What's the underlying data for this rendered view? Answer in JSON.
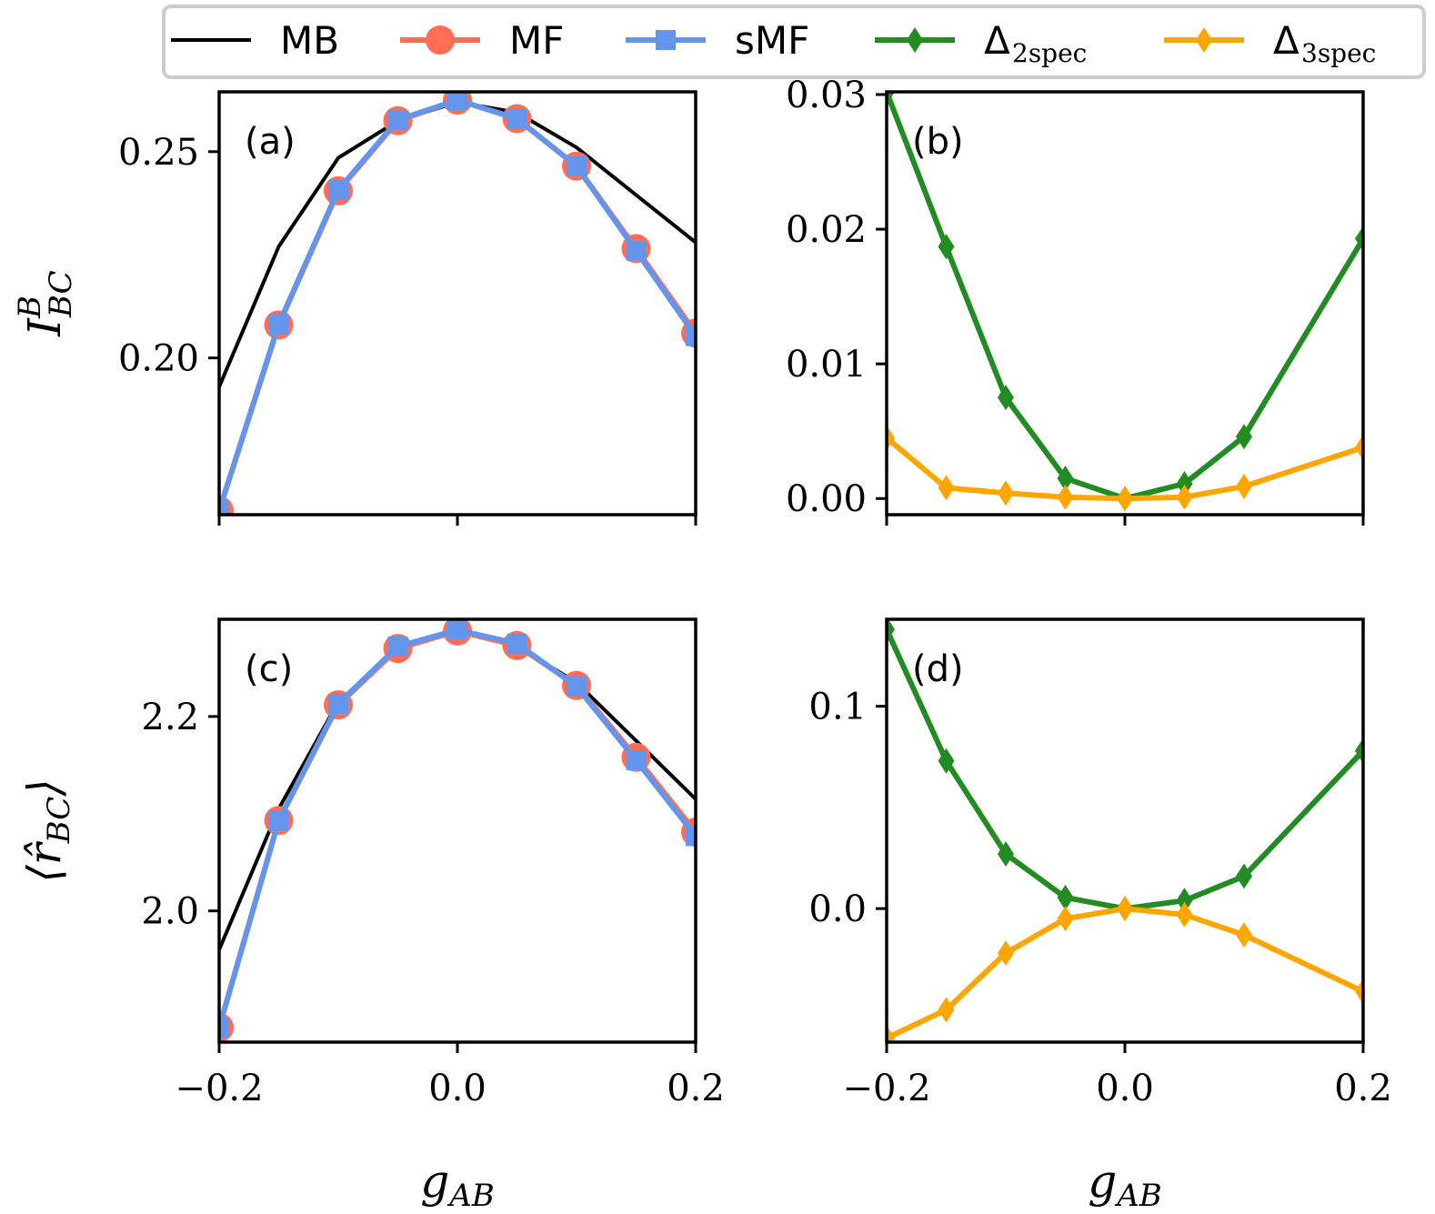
{
  "chart_data": {
    "type": "line",
    "legend": {
      "placement": "top",
      "entries": [
        {
          "label": "MB",
          "sub": "",
          "color": "#000000",
          "marker": "none"
        },
        {
          "label": "MF",
          "sub": "",
          "color": "#ff6e54",
          "marker": "circle"
        },
        {
          "label": "sMF",
          "sub": "",
          "color": "#6495ed",
          "marker": "square"
        },
        {
          "label": "Δ",
          "sub": "2spec",
          "color": "#228b22",
          "marker": "diamond"
        },
        {
          "label": "Δ",
          "sub": "3spec",
          "color": "#ffa500",
          "marker": "diamond"
        }
      ]
    },
    "panels": [
      {
        "id": "a",
        "label": "(a)",
        "ylabel": "I",
        "ylabel_sup": "B",
        "ylabel_sub": "BC",
        "xlabel": "",
        "xlim": [
          -0.2,
          0.2
        ],
        "ylim": [
          0.162,
          0.2645
        ],
        "yticks": [
          0.2,
          0.25
        ],
        "yticklabels": [
          "0.20",
          "0.25"
        ],
        "xticks": [
          -0.2,
          0.0,
          0.2
        ],
        "xticklabels": [],
        "series": [
          {
            "name": "MB",
            "x": [
              -0.2,
              -0.15,
              -0.1,
              -0.05,
              0.0,
              0.05,
              0.1,
              0.15,
              0.2
            ],
            "y": [
              0.193,
              0.227,
              0.2485,
              0.2575,
              0.262,
              0.2595,
              0.251,
              0.2395,
              0.228
            ]
          },
          {
            "name": "MF",
            "x": [
              -0.2,
              -0.15,
              -0.1,
              -0.05,
              0.0,
              0.05,
              0.1,
              0.15,
              0.2
            ],
            "y": [
              0.163,
              0.208,
              0.2405,
              0.2575,
              0.2625,
              0.258,
              0.2465,
              0.2265,
              0.206
            ]
          },
          {
            "name": "sMF",
            "x": [
              -0.2,
              -0.15,
              -0.1,
              -0.05,
              0.0,
              0.05,
              0.1,
              0.15,
              0.2
            ],
            "y": [
              0.163,
              0.2082,
              0.2407,
              0.2577,
              0.2625,
              0.258,
              0.2465,
              0.226,
              0.2053
            ]
          }
        ]
      },
      {
        "id": "b",
        "label": "(b)",
        "ylabel": "",
        "xlabel": "",
        "xlim": [
          -0.2,
          0.2
        ],
        "ylim": [
          -0.0012,
          0.0302
        ],
        "yticks": [
          0.0,
          0.01,
          0.02,
          0.03
        ],
        "yticklabels": [
          "0.00",
          "0.01",
          "0.02",
          "0.03"
        ],
        "xticks": [
          -0.2,
          0.0,
          0.2
        ],
        "xticklabels": [],
        "series": [
          {
            "name": "Δ2spec",
            "x": [
              -0.2,
              -0.15,
              -0.1,
              -0.05,
              0.0,
              0.05,
              0.1,
              0.2
            ],
            "y": [
              0.0302,
              0.0187,
              0.0075,
              0.0015,
              0.0,
              0.0011,
              0.0046,
              0.0193
            ]
          },
          {
            "name": "Δ3spec",
            "x": [
              -0.2,
              -0.15,
              -0.1,
              -0.05,
              0.0,
              0.05,
              0.1,
              0.2
            ],
            "y": [
              0.0045,
              0.0008,
              0.0004,
              0.0001,
              0.0,
              0.0001,
              0.0009,
              0.0038
            ]
          }
        ]
      },
      {
        "id": "c",
        "label": "(c)",
        "ylabel": "⟨r̂",
        "ylabel_sub": "BC",
        "ylabel_end": "⟩",
        "xlabel": "g",
        "xlabel_sub": "AB",
        "xlim": [
          -0.2,
          0.2
        ],
        "ylim": [
          1.865,
          2.3
        ],
        "yticks": [
          2.0,
          2.2
        ],
        "yticklabels": [
          "2.0",
          "2.2"
        ],
        "xticks": [
          -0.2,
          0.0,
          0.2
        ],
        "xticklabels": [
          "−0.2",
          "0.0",
          "0.2"
        ],
        "series": [
          {
            "name": "MB",
            "x": [
              -0.2,
              -0.15,
              -0.1,
              -0.05,
              0.0,
              0.05,
              0.1,
              0.15,
              0.2
            ],
            "y": [
              1.96,
              2.105,
              2.215,
              2.27,
              2.288,
              2.272,
              2.235,
              2.175,
              2.115
            ]
          },
          {
            "name": "MF",
            "x": [
              -0.2,
              -0.15,
              -0.1,
              -0.05,
              0.0,
              0.05,
              0.1,
              0.15,
              0.2
            ],
            "y": [
              1.88,
              2.093,
              2.212,
              2.27,
              2.288,
              2.273,
              2.232,
              2.158,
              2.081
            ]
          },
          {
            "name": "sMF",
            "x": [
              -0.2,
              -0.15,
              -0.1,
              -0.05,
              0.0,
              0.05,
              0.1,
              0.15,
              0.2
            ],
            "y": [
              1.88,
              2.093,
              2.213,
              2.272,
              2.289,
              2.275,
              2.231,
              2.155,
              2.077
            ]
          }
        ]
      },
      {
        "id": "d",
        "label": "(d)",
        "ylabel": "",
        "xlabel": "g",
        "xlabel_sub": "AB",
        "xlim": [
          -0.2,
          0.2
        ],
        "ylim": [
          -0.066,
          0.143
        ],
        "yticks": [
          0.0,
          0.1
        ],
        "yticklabels": [
          "0.0",
          "0.1"
        ],
        "xticks": [
          -0.2,
          0.0,
          0.2
        ],
        "xticklabels": [
          "−0.2",
          "0.0",
          "0.2"
        ],
        "series": [
          {
            "name": "Δ2spec",
            "x": [
              -0.2,
              -0.15,
              -0.1,
              -0.05,
              0.0,
              0.05,
              0.1,
              0.2
            ],
            "y": [
              0.138,
              0.073,
              0.027,
              0.0055,
              0.0,
              0.004,
              0.016,
              0.078
            ]
          },
          {
            "name": "Δ3spec",
            "x": [
              -0.2,
              -0.15,
              -0.1,
              -0.05,
              0.0,
              0.05,
              0.1,
              0.2
            ],
            "y": [
              -0.064,
              -0.05,
              -0.022,
              -0.005,
              0.0,
              -0.003,
              -0.013,
              -0.041
            ]
          }
        ]
      }
    ]
  }
}
